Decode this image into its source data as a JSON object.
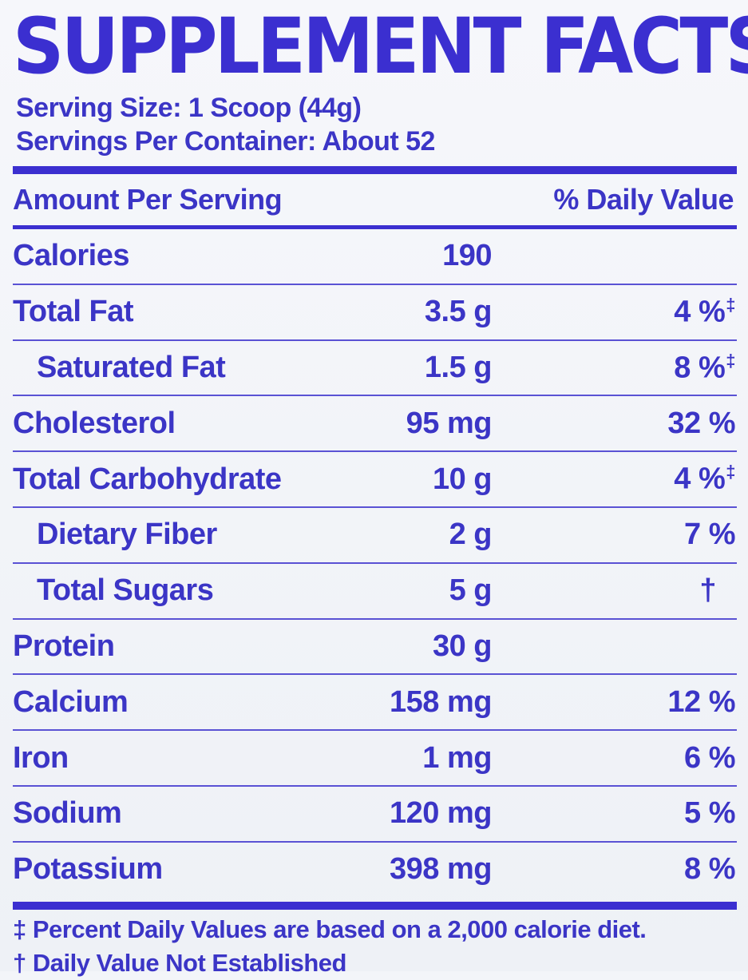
{
  "title": "SUPPLEMENT FACTS",
  "serving": {
    "size": "Serving Size: 1 Scoop (44g)",
    "per_container": "Servings Per Container: About 52"
  },
  "header": {
    "left": "Amount Per Serving",
    "right": "% Daily Value"
  },
  "rows": [
    {
      "name": "Calories",
      "amount": "190",
      "dv": "",
      "sym": "",
      "indent": false
    },
    {
      "name": "Total Fat",
      "amount": "3.5 g",
      "dv": "4 %",
      "sym": "‡",
      "indent": false
    },
    {
      "name": "Saturated Fat",
      "amount": "1.5 g",
      "dv": "8 %",
      "sym": "‡",
      "indent": true
    },
    {
      "name": "Cholesterol",
      "amount": "95 mg",
      "dv": "32 %",
      "sym": "",
      "indent": false
    },
    {
      "name": "Total Carbohydrate",
      "amount": "10 g",
      "dv": "4 %",
      "sym": "‡",
      "indent": false
    },
    {
      "name": "Dietary Fiber",
      "amount": "2 g",
      "dv": "7 %",
      "sym": "",
      "indent": true
    },
    {
      "name": "Total Sugars",
      "amount": "5 g",
      "dv": "†",
      "sym": "",
      "indent": true
    },
    {
      "name": "Protein",
      "amount": "30 g",
      "dv": "",
      "sym": "",
      "indent": false
    },
    {
      "name": "Calcium",
      "amount": "158 mg",
      "dv": "12 %",
      "sym": "",
      "indent": false
    },
    {
      "name": "Iron",
      "amount": "1 mg",
      "dv": "6 %",
      "sym": "",
      "indent": false
    },
    {
      "name": "Sodium",
      "amount": "120 mg",
      "dv": "5 %",
      "sym": "",
      "indent": false
    },
    {
      "name": "Potassium",
      "amount": "398 mg",
      "dv": "8 %",
      "sym": "",
      "indent": false
    }
  ],
  "footnotes": [
    "‡ Percent Daily Values are based on a 2,000 calorie diet.",
    "† Daily Value Not Established"
  ],
  "colors": {
    "ink": "#3b35c6",
    "rule": "#3b2fd0",
    "background": "#f3f5f9"
  }
}
